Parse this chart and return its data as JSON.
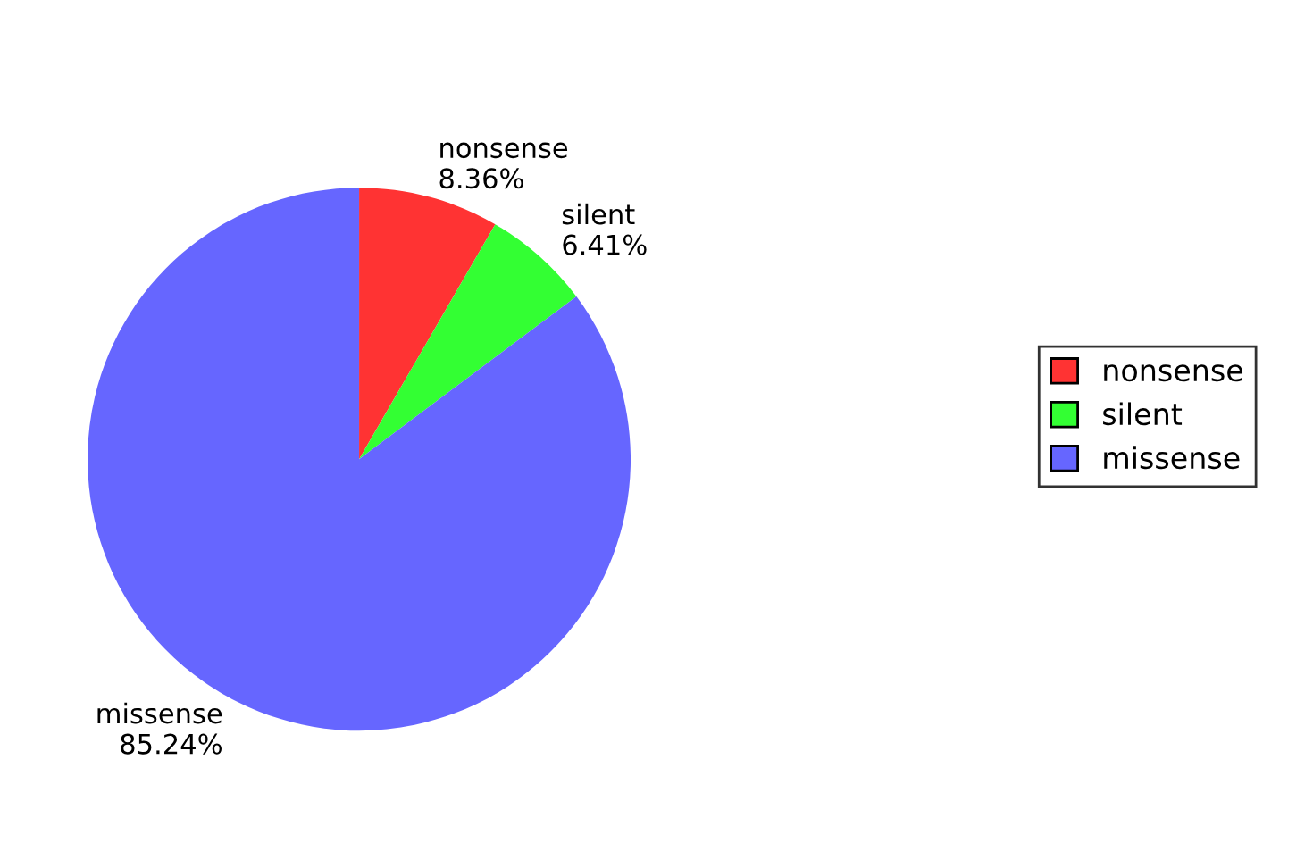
{
  "chart_data": {
    "type": "pie",
    "categories": [
      "nonsense",
      "silent",
      "missense"
    ],
    "values": [
      8.36,
      6.41,
      85.24
    ],
    "colors": [
      "#ff3333",
      "#33ff33",
      "#6666ff"
    ],
    "value_labels": [
      "8.36%",
      "6.41%",
      "85.24%"
    ],
    "legend": "right"
  }
}
